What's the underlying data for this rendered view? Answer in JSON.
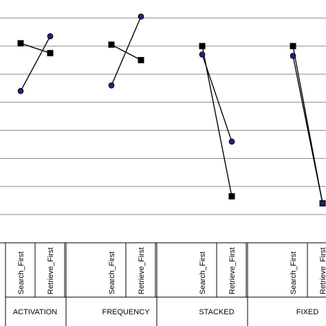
{
  "chart_data": {
    "type": "line",
    "title": "",
    "xlabel": "",
    "ylabel": "",
    "grid": true,
    "legend": "none",
    "marker_styles": [
      "square",
      "circle"
    ],
    "colors": {
      "line": "#000000",
      "square_marker": "#000000",
      "circle_marker": "#1a237e",
      "grid": "#888888"
    },
    "groups": [
      {
        "name": "ACTIVATION",
        "categories": [
          "Search_First",
          "Retrieve_First"
        ]
      },
      {
        "name": "FREQUENCY",
        "categories": [
          "Search_First",
          "Retrieve_First"
        ]
      },
      {
        "name": "STACKED",
        "categories": [
          "Search_First",
          "Retrieve_First"
        ]
      },
      {
        "name": "FIXED",
        "categories": [
          "Search_First",
          "Retrieve_First"
        ]
      }
    ],
    "series": [
      {
        "marker": "square",
        "values": [
          [
            6.1,
            5.75
          ],
          [
            6.05,
            5.5
          ],
          [
            6.0,
            0.65
          ],
          [
            6.0,
            0.4
          ]
        ]
      },
      {
        "marker": "circle",
        "values": [
          [
            4.4,
            6.35
          ],
          [
            4.6,
            7.05
          ],
          [
            5.7,
            2.6
          ],
          [
            5.65,
            0.4
          ]
        ]
      }
    ],
    "ylim": [
      0,
      7.8
    ]
  }
}
